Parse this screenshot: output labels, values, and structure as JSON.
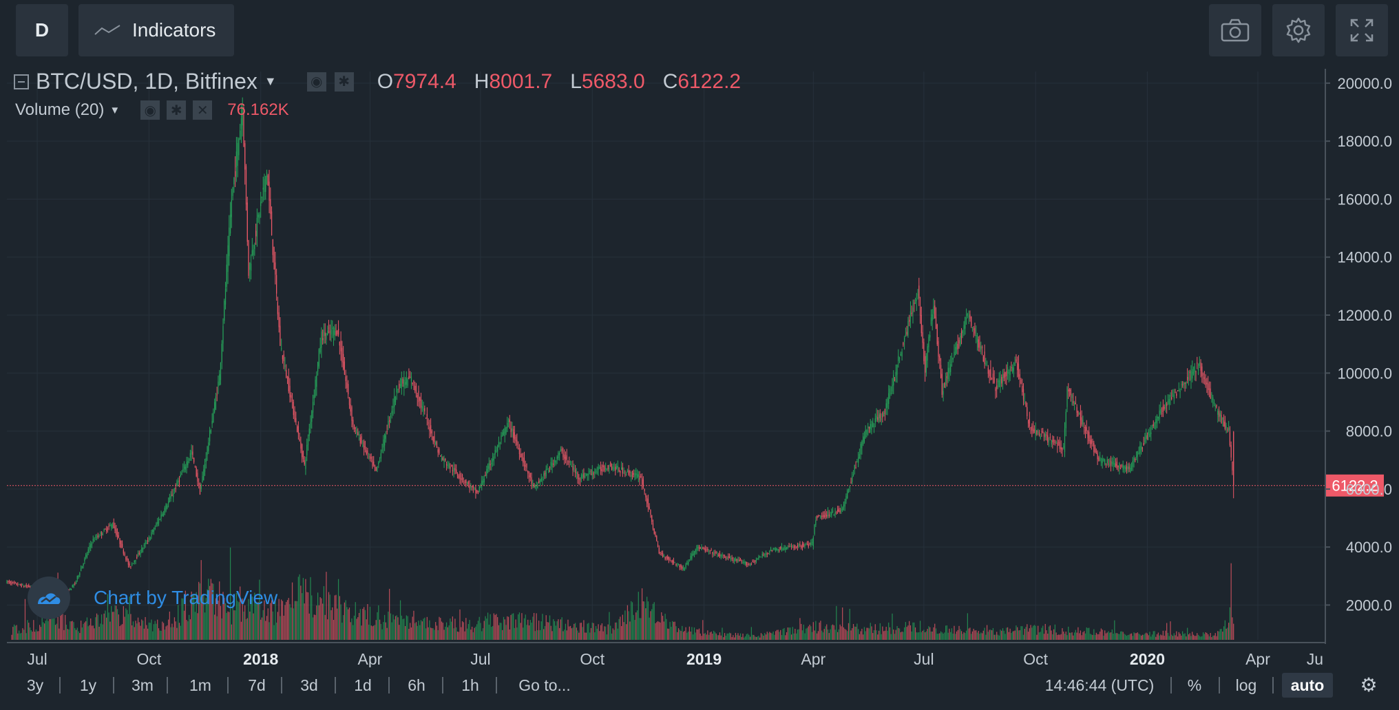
{
  "toolbar": {
    "interval_label": "D",
    "indicators_label": "Indicators"
  },
  "legend": {
    "symbol": "BTC/USD, 1D, Bitfinex",
    "open_key": "O",
    "open": "7974.4",
    "high_key": "H",
    "high": "8001.7",
    "low_key": "L",
    "low": "5683.0",
    "close_key": "C",
    "close": "6122.2",
    "volume_label": "Volume (20)",
    "volume_value": "76.162K"
  },
  "watermark": "Chart by TradingView",
  "bottom": {
    "ranges": [
      "3y",
      "1y",
      "3m",
      "1m",
      "7d",
      "3d",
      "1d",
      "6h",
      "1h"
    ],
    "goto": "Go to...",
    "time": "14:46:44 (UTC)",
    "percent": "%",
    "log": "log",
    "auto": "auto"
  },
  "colors": {
    "up": "#26a65b",
    "down": "#ee5968",
    "price_line": "#ee5968"
  },
  "chart_data": {
    "type": "candlestick",
    "symbol": "BTC/USD",
    "interval": "1D",
    "exchange": "Bitfinex",
    "ylim": [
      800,
      20400
    ],
    "y_ticks": [
      2000,
      4000,
      6000,
      8000,
      10000,
      12000,
      14000,
      16000,
      18000,
      20000
    ],
    "y_tick_labels": [
      "2000.0",
      "4000.0",
      "6000.0",
      "8000.0",
      "10000.0",
      "12000.0",
      "14000.0",
      "16000.0",
      "18000.0",
      "20000.0"
    ],
    "x_range": [
      "2017-06-06",
      "2020-05-26"
    ],
    "x_ticks": [
      {
        "date": "2017-07-01",
        "label": "Jul",
        "bold": false
      },
      {
        "date": "2017-10-01",
        "label": "Oct",
        "bold": false
      },
      {
        "date": "2018-01-01",
        "label": "2018",
        "bold": true
      },
      {
        "date": "2018-04-01",
        "label": "Apr",
        "bold": false
      },
      {
        "date": "2018-07-01",
        "label": "Jul",
        "bold": false
      },
      {
        "date": "2018-10-01",
        "label": "Oct",
        "bold": false
      },
      {
        "date": "2019-01-01",
        "label": "2019",
        "bold": true
      },
      {
        "date": "2019-04-01",
        "label": "Apr",
        "bold": false
      },
      {
        "date": "2019-07-01",
        "label": "Jul",
        "bold": false
      },
      {
        "date": "2019-10-01",
        "label": "Oct",
        "bold": false
      },
      {
        "date": "2020-01-01",
        "label": "2020",
        "bold": true
      },
      {
        "date": "2020-04-01",
        "label": "Apr",
        "bold": false
      },
      {
        "date": "2020-07-01",
        "label": "Ju",
        "bold": false
      }
    ],
    "last_price": 6122.2,
    "last_price_label": "6122.2",
    "price_series": {
      "name": "BTC/USD",
      "points": [
        [
          "2017-06-06",
          2800
        ],
        [
          "2017-06-20",
          2650
        ],
        [
          "2017-07-05",
          2600
        ],
        [
          "2017-07-16",
          1950
        ],
        [
          "2017-08-01",
          2750
        ],
        [
          "2017-08-15",
          4200
        ],
        [
          "2017-09-01",
          4800
        ],
        [
          "2017-09-15",
          3300
        ],
        [
          "2017-10-01",
          4300
        ],
        [
          "2017-10-20",
          5800
        ],
        [
          "2017-11-05",
          7300
        ],
        [
          "2017-11-12",
          5900
        ],
        [
          "2017-11-28",
          9900
        ],
        [
          "2017-12-08",
          16000
        ],
        [
          "2017-12-17",
          19200
        ],
        [
          "2017-12-22",
          13500
        ],
        [
          "2018-01-06",
          17000
        ],
        [
          "2018-01-17",
          11000
        ],
        [
          "2018-02-06",
          6800
        ],
        [
          "2018-02-20",
          11300
        ],
        [
          "2018-03-05",
          11500
        ],
        [
          "2018-03-18",
          8200
        ],
        [
          "2018-04-06",
          6600
        ],
        [
          "2018-04-24",
          9600
        ],
        [
          "2018-05-05",
          9800
        ],
        [
          "2018-05-29",
          7100
        ],
        [
          "2018-06-28",
          5850
        ],
        [
          "2018-07-24",
          8300
        ],
        [
          "2018-08-14",
          6000
        ],
        [
          "2018-09-05",
          7300
        ],
        [
          "2018-09-20",
          6400
        ],
        [
          "2018-10-15",
          6800
        ],
        [
          "2018-11-10",
          6400
        ],
        [
          "2018-11-16",
          5400
        ],
        [
          "2018-11-25",
          3800
        ],
        [
          "2018-12-15",
          3250
        ],
        [
          "2018-12-26",
          4000
        ],
        [
          "2019-01-15",
          3700
        ],
        [
          "2019-02-07",
          3400
        ],
        [
          "2019-02-25",
          3900
        ],
        [
          "2019-03-31",
          4100
        ],
        [
          "2019-04-03",
          5000
        ],
        [
          "2019-04-25",
          5300
        ],
        [
          "2019-05-14",
          8000
        ],
        [
          "2019-05-30",
          8700
        ],
        [
          "2019-06-26",
          12900
        ],
        [
          "2019-07-02",
          10100
        ],
        [
          "2019-07-09",
          12500
        ],
        [
          "2019-07-16",
          9400
        ],
        [
          "2019-08-06",
          12000
        ],
        [
          "2019-08-29",
          9500
        ],
        [
          "2019-09-15",
          10400
        ],
        [
          "2019-09-26",
          8100
        ],
        [
          "2019-10-24",
          7400
        ],
        [
          "2019-10-27",
          9500
        ],
        [
          "2019-11-22",
          7000
        ],
        [
          "2019-12-17",
          6700
        ],
        [
          "2020-01-14",
          8800
        ],
        [
          "2020-02-12",
          10300
        ],
        [
          "2020-02-27",
          8700
        ],
        [
          "2020-03-08",
          8000
        ],
        [
          "2020-03-12",
          6122
        ]
      ]
    },
    "volume": {
      "name": "Volume (20)",
      "note": "volume histogram in lower pane, relative units 0-1",
      "bars": [
        [
          "2017-06-10",
          0.2
        ],
        [
          "2017-07-01",
          0.3
        ],
        [
          "2017-07-16",
          0.45
        ],
        [
          "2017-08-01",
          0.25
        ],
        [
          "2017-08-20",
          0.35
        ],
        [
          "2017-09-15",
          0.55
        ],
        [
          "2017-10-01",
          0.25
        ],
        [
          "2017-10-25",
          0.45
        ],
        [
          "2017-11-12",
          1.0
        ],
        [
          "2017-11-29",
          0.85
        ],
        [
          "2017-12-07",
          0.6
        ],
        [
          "2017-12-22",
          0.75
        ],
        [
          "2018-01-05",
          0.5
        ],
        [
          "2018-01-17",
          0.6
        ],
        [
          "2018-02-06",
          0.95
        ],
        [
          "2018-03-08",
          0.55
        ],
        [
          "2018-04-12",
          0.4
        ],
        [
          "2018-05-10",
          0.3
        ],
        [
          "2018-06-24",
          0.3
        ],
        [
          "2018-07-18",
          0.35
        ],
        [
          "2018-08-14",
          0.35
        ],
        [
          "2018-09-05",
          0.3
        ],
        [
          "2018-10-15",
          0.2
        ],
        [
          "2018-11-15",
          0.75
        ],
        [
          "2018-11-20",
          0.6
        ],
        [
          "2018-11-25",
          0.4
        ],
        [
          "2018-12-15",
          0.2
        ],
        [
          "2019-01-15",
          0.1
        ],
        [
          "2019-02-15",
          0.08
        ],
        [
          "2019-04-02",
          0.25
        ],
        [
          "2019-05-14",
          0.2
        ],
        [
          "2019-06-26",
          0.25
        ],
        [
          "2019-07-16",
          0.2
        ],
        [
          "2019-08-15",
          0.15
        ],
        [
          "2019-09-25",
          0.2
        ],
        [
          "2019-10-25",
          0.18
        ],
        [
          "2019-11-22",
          0.15
        ],
        [
          "2019-12-17",
          0.1
        ],
        [
          "2020-01-14",
          0.12
        ],
        [
          "2020-02-27",
          0.1
        ],
        [
          "2020-03-12",
          0.55
        ]
      ]
    }
  }
}
